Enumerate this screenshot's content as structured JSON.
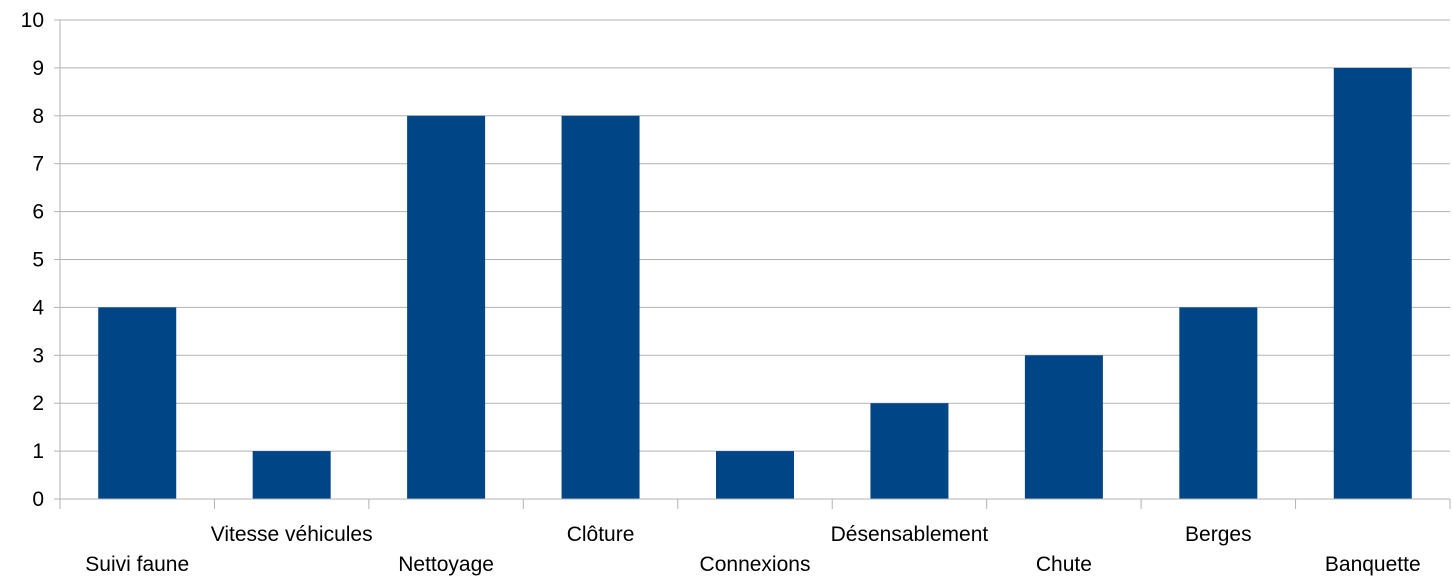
{
  "chart_data": {
    "type": "bar",
    "categories": [
      "Suivi faune",
      "Vitesse véhicules",
      "Nettoyage",
      "Clôture",
      "Connexions",
      "Désensablement",
      "Chute",
      "Berges",
      "Banquette"
    ],
    "values": [
      4,
      1,
      8,
      8,
      1,
      2,
      3,
      4,
      9
    ],
    "yticks": [
      0,
      1,
      2,
      3,
      4,
      5,
      6,
      7,
      8,
      9,
      10
    ],
    "ylim": [
      0,
      10
    ],
    "grid": true,
    "legend": "none",
    "bar_color": "#004586",
    "grid_color": "#b3b3b3"
  }
}
